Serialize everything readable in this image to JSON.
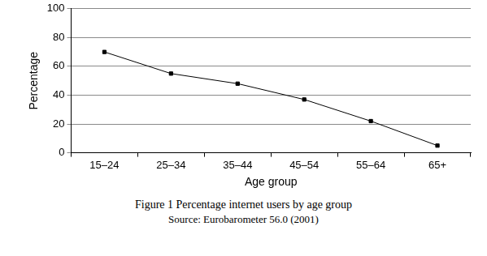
{
  "chart_data": {
    "type": "line",
    "title": "Figure 1 Percentage internet users by age group",
    "subtitle": "Source: Eurobarometer 56.0 (2001)",
    "x_label": "Age group",
    "y_label": "Percentage",
    "categories": [
      "15–24",
      "25–34",
      "35–44",
      "45–54",
      "55–64",
      "65+"
    ],
    "values": [
      70,
      55,
      48,
      37,
      22,
      5
    ],
    "color": "#000000",
    "marker": "square",
    "line_style": "solid",
    "ylim": [
      0,
      100
    ],
    "yticks": [
      0,
      20,
      40,
      60,
      80,
      100
    ],
    "grid": true
  }
}
